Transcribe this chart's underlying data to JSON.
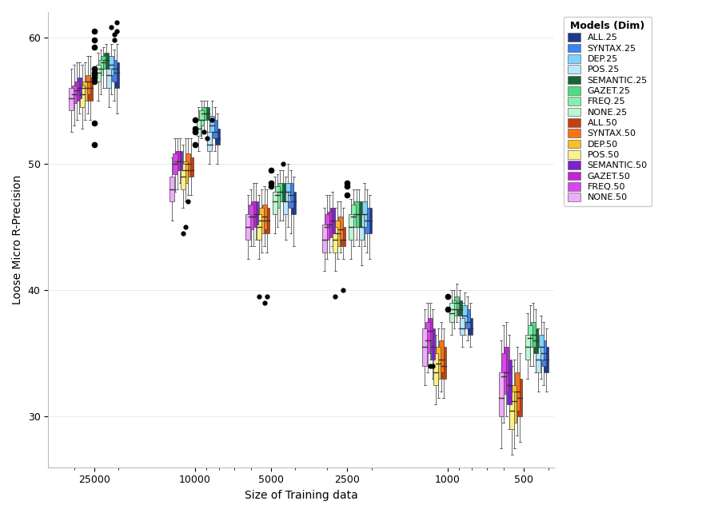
{
  "xlabel": "Size of Training data",
  "ylabel": "Loose Micro R-Precision",
  "background_color": "#ffffff",
  "plot_bg_color": "#ffffff",
  "grid_color": "#e8e8e8",
  "x_positions": [
    25000,
    10000,
    5000,
    2500,
    1000,
    500
  ],
  "x_tick_labels": [
    "25000",
    "10000",
    "5000",
    "2500",
    "1000",
    "500"
  ],
  "ylim": [
    26,
    62
  ],
  "yticks": [
    30,
    40,
    50,
    60
  ],
  "models_25": [
    "ALL.25",
    "SYNTAX.25",
    "DEP.25",
    "POS.25",
    "SEMANTIC.25",
    "GAZET.25",
    "FREQ.25",
    "NONE.25"
  ],
  "models_50": [
    "ALL.50",
    "SYNTAX.50",
    "DEP.50",
    "POS.50",
    "SEMANTIC.50",
    "GAZET.50",
    "FREQ.50",
    "NONE.50"
  ],
  "colors_25": [
    "#1e3a8a",
    "#3b82f6",
    "#7dd3fc",
    "#bae6fd",
    "#166534",
    "#4ade80",
    "#86efac",
    "#bbf7d0"
  ],
  "colors_50": [
    "#c2410c",
    "#f97316",
    "#fbbf24",
    "#fef08a",
    "#7e22ce",
    "#c026d3",
    "#d946ef",
    "#f0abfc"
  ],
  "box_data": {
    "ALL.25": {
      "25000": [
        54.0,
        56.0,
        57.2,
        58.0,
        59.5
      ],
      "10000": [
        50.0,
        51.5,
        52.0,
        52.8,
        54.0
      ],
      "5000": [
        43.5,
        46.0,
        47.0,
        47.8,
        49.0
      ],
      "2500": [
        42.5,
        44.5,
        45.5,
        46.5,
        47.5
      ],
      "1000": [
        35.5,
        36.5,
        37.0,
        37.8,
        39.0
      ],
      "500": [
        32.0,
        33.5,
        34.5,
        35.5,
        37.0
      ]
    },
    "SYNTAX.25": {
      "25000": [
        55.0,
        56.5,
        57.5,
        58.2,
        59.0
      ],
      "10000": [
        51.0,
        52.0,
        52.5,
        53.5,
        54.5
      ],
      "5000": [
        44.5,
        46.5,
        47.5,
        48.5,
        49.5
      ],
      "2500": [
        43.0,
        44.5,
        45.5,
        46.5,
        48.0
      ],
      "1000": [
        36.0,
        37.0,
        37.5,
        38.5,
        39.5
      ],
      "500": [
        32.5,
        34.0,
        35.0,
        36.0,
        37.5
      ]
    },
    "DEP.25": {
      "25000": [
        55.5,
        57.0,
        57.8,
        58.5,
        59.5
      ],
      "10000": [
        51.5,
        52.5,
        53.0,
        53.8,
        55.0
      ],
      "5000": [
        45.0,
        47.0,
        47.8,
        48.5,
        50.0
      ],
      "2500": [
        43.5,
        45.0,
        46.0,
        47.0,
        48.5
      ],
      "1000": [
        36.5,
        37.5,
        38.0,
        38.8,
        39.8
      ],
      "500": [
        33.0,
        34.5,
        35.5,
        36.5,
        38.0
      ]
    },
    "POS.25": {
      "25000": [
        54.5,
        56.0,
        57.0,
        57.5,
        58.5
      ],
      "10000": [
        50.0,
        51.0,
        51.5,
        52.5,
        53.5
      ],
      "5000": [
        44.0,
        46.0,
        47.0,
        47.8,
        49.0
      ],
      "2500": [
        42.0,
        44.0,
        45.0,
        46.0,
        47.0
      ],
      "1000": [
        35.5,
        36.5,
        37.0,
        37.8,
        39.0
      ],
      "500": [
        32.0,
        33.5,
        34.5,
        35.5,
        37.0
      ]
    },
    "SEMANTIC.25": {
      "25000": [
        56.0,
        57.5,
        58.2,
        58.8,
        59.5
      ],
      "10000": [
        52.5,
        53.5,
        54.0,
        54.5,
        55.0
      ],
      "5000": [
        45.5,
        47.0,
        47.8,
        48.5,
        49.5
      ],
      "2500": [
        43.5,
        45.0,
        46.0,
        47.0,
        48.0
      ],
      "1000": [
        37.0,
        38.0,
        38.5,
        39.2,
        40.0
      ],
      "500": [
        33.5,
        35.0,
        36.0,
        37.0,
        38.5
      ]
    },
    "GAZET.25": {
      "25000": [
        56.0,
        57.5,
        58.0,
        58.5,
        59.2
      ],
      "10000": [
        52.5,
        53.5,
        54.0,
        54.5,
        55.0
      ],
      "5000": [
        45.5,
        47.0,
        47.8,
        48.5,
        49.5
      ],
      "2500": [
        44.0,
        45.0,
        46.0,
        47.0,
        48.0
      ],
      "1000": [
        37.5,
        38.5,
        39.0,
        39.5,
        40.5
      ],
      "500": [
        34.0,
        35.5,
        36.5,
        37.5,
        39.0
      ]
    },
    "FREQ.25": {
      "25000": [
        55.5,
        57.0,
        57.5,
        58.2,
        59.0
      ],
      "10000": [
        52.0,
        53.0,
        53.5,
        54.2,
        55.0
      ],
      "5000": [
        45.0,
        46.5,
        47.5,
        48.2,
        49.2
      ],
      "2500": [
        43.5,
        45.0,
        45.8,
        46.8,
        48.0
      ],
      "1000": [
        37.0,
        38.0,
        38.5,
        39.2,
        40.0
      ],
      "500": [
        34.0,
        35.5,
        36.2,
        37.2,
        38.8
      ]
    },
    "NONE.25": {
      "25000": [
        55.0,
        56.5,
        57.2,
        57.8,
        58.8
      ],
      "10000": [
        51.0,
        52.2,
        52.8,
        53.5,
        54.5
      ],
      "5000": [
        44.5,
        46.0,
        47.0,
        47.8,
        49.0
      ],
      "2500": [
        42.5,
        44.0,
        45.0,
        46.0,
        47.2
      ],
      "1000": [
        36.5,
        37.5,
        38.2,
        39.0,
        40.0
      ],
      "500": [
        33.0,
        34.5,
        35.5,
        36.5,
        38.2
      ]
    },
    "ALL.50": {
      "25000": [
        53.5,
        55.0,
        56.0,
        56.8,
        58.5
      ],
      "10000": [
        47.5,
        49.0,
        49.5,
        50.5,
        52.0
      ],
      "5000": [
        43.0,
        44.5,
        45.5,
        46.5,
        48.0
      ],
      "2500": [
        42.5,
        43.5,
        44.0,
        45.0,
        46.5
      ],
      "1000": [
        31.5,
        33.0,
        34.0,
        35.5,
        37.0
      ],
      "500": [
        28.0,
        30.0,
        31.5,
        33.0,
        35.0
      ]
    },
    "SYNTAX.50": {
      "25000": [
        54.0,
        55.5,
        56.5,
        57.0,
        58.5
      ],
      "10000": [
        47.5,
        49.0,
        50.0,
        50.8,
        52.0
      ],
      "5000": [
        43.5,
        44.8,
        45.8,
        46.8,
        48.2
      ],
      "2500": [
        43.0,
        44.0,
        44.8,
        45.8,
        47.0
      ],
      "1000": [
        32.0,
        33.5,
        34.5,
        36.0,
        37.5
      ],
      "500": [
        28.5,
        30.5,
        32.0,
        33.5,
        35.5
      ]
    },
    "DEP.50": {
      "25000": [
        53.5,
        55.0,
        56.0,
        56.5,
        58.0
      ],
      "10000": [
        47.0,
        48.5,
        49.5,
        50.2,
        52.0
      ],
      "5000": [
        43.0,
        44.5,
        45.5,
        46.5,
        48.0
      ],
      "2500": [
        42.5,
        43.5,
        44.5,
        45.5,
        47.0
      ],
      "1000": [
        31.5,
        33.0,
        34.2,
        35.5,
        37.0
      ],
      "500": [
        27.5,
        29.5,
        31.2,
        32.5,
        34.5
      ]
    },
    "POS.50": {
      "25000": [
        52.8,
        54.5,
        55.5,
        56.2,
        57.8
      ],
      "10000": [
        46.5,
        48.0,
        49.0,
        50.0,
        51.5
      ],
      "5000": [
        42.5,
        44.0,
        45.0,
        46.0,
        47.5
      ],
      "2500": [
        41.5,
        43.0,
        44.0,
        45.0,
        46.5
      ],
      "1000": [
        31.0,
        32.5,
        33.5,
        35.0,
        36.5
      ],
      "500": [
        27.0,
        29.0,
        30.5,
        32.0,
        34.0
      ]
    },
    "SEMANTIC.50": {
      "25000": [
        54.0,
        55.2,
        56.0,
        56.8,
        58.0
      ],
      "10000": [
        48.5,
        49.5,
        50.2,
        51.0,
        52.0
      ],
      "5000": [
        44.0,
        45.2,
        46.0,
        47.0,
        48.5
      ],
      "2500": [
        43.5,
        44.5,
        45.5,
        46.5,
        47.8
      ],
      "1000": [
        33.0,
        34.5,
        35.5,
        37.0,
        38.5
      ],
      "500": [
        29.0,
        31.0,
        32.5,
        34.5,
        36.5
      ]
    },
    "GAZET.50": {
      "25000": [
        53.5,
        55.0,
        55.8,
        56.5,
        58.0
      ],
      "10000": [
        48.0,
        49.5,
        50.2,
        51.0,
        52.0
      ],
      "5000": [
        43.5,
        45.0,
        45.8,
        47.0,
        48.5
      ],
      "2500": [
        43.0,
        44.2,
        45.2,
        46.2,
        47.5
      ],
      "1000": [
        34.5,
        36.0,
        36.8,
        37.8,
        39.0
      ],
      "500": [
        30.0,
        32.0,
        33.5,
        35.5,
        37.5
      ]
    },
    "FREQ.50": {
      "25000": [
        53.0,
        54.8,
        55.5,
        56.2,
        57.8
      ],
      "10000": [
        47.8,
        49.2,
        50.0,
        50.8,
        52.0
      ],
      "5000": [
        43.5,
        44.8,
        45.8,
        46.8,
        48.0
      ],
      "2500": [
        42.5,
        44.0,
        45.0,
        46.0,
        47.5
      ],
      "1000": [
        33.5,
        35.0,
        36.0,
        37.5,
        39.0
      ],
      "500": [
        29.5,
        31.8,
        33.2,
        35.0,
        37.2
      ]
    },
    "NONE.50": {
      "25000": [
        52.5,
        54.2,
        55.2,
        56.0,
        57.5
      ],
      "10000": [
        45.5,
        47.0,
        48.0,
        49.0,
        50.5
      ],
      "5000": [
        42.5,
        44.0,
        45.0,
        46.0,
        47.5
      ],
      "2500": [
        41.5,
        43.0,
        44.0,
        45.2,
        46.5
      ],
      "1000": [
        32.5,
        34.0,
        35.5,
        37.0,
        38.5
      ],
      "500": [
        27.5,
        30.0,
        31.5,
        33.5,
        36.0
      ]
    }
  },
  "outliers": {
    "ALL.25": {
      "25000": [
        60.5,
        61.2
      ],
      "10000": [],
      "5000": [],
      "2500": [],
      "1000": [],
      "500": []
    },
    "SYNTAX.25": {
      "25000": [
        59.8,
        60.2
      ],
      "10000": [],
      "5000": [],
      "2500": [],
      "1000": [],
      "500": []
    },
    "DEP.25": {
      "25000": [
        60.8
      ],
      "10000": [
        53.5
      ],
      "5000": [],
      "2500": [],
      "1000": [],
      "500": []
    },
    "POS.25": {
      "25000": [],
      "10000": [],
      "5000": [],
      "2500": [],
      "1000": [],
      "500": []
    },
    "SEMANTIC.25": {
      "25000": [],
      "10000": [
        52.0
      ],
      "5000": [
        50.0
      ],
      "2500": [],
      "1000": [],
      "500": []
    },
    "GAZET.25": {
      "25000": [],
      "10000": [
        52.5
      ],
      "5000": [],
      "2500": [],
      "1000": [],
      "500": []
    },
    "FREQ.25": {
      "25000": [],
      "10000": [],
      "5000": [],
      "2500": [],
      "1000": [],
      "500": []
    },
    "NONE.25": {
      "25000": [],
      "10000": [],
      "5000": [],
      "2500": [],
      "1000": [],
      "500": []
    },
    "ALL.50": {
      "25000": [],
      "10000": [],
      "5000": [
        39.5
      ],
      "2500": [
        40.0
      ],
      "1000": [],
      "500": []
    },
    "SYNTAX.50": {
      "25000": [],
      "10000": [
        47.0
      ],
      "5000": [
        39.0
      ],
      "2500": [],
      "1000": [],
      "500": []
    },
    "DEP.50": {
      "25000": [],
      "10000": [
        45.0
      ],
      "5000": [],
      "2500": [],
      "1000": [],
      "500": []
    },
    "POS.50": {
      "25000": [],
      "10000": [
        44.5
      ],
      "5000": [
        39.5
      ],
      "2500": [
        39.5
      ],
      "1000": [],
      "500": []
    },
    "SEMANTIC.50": {
      "25000": [],
      "10000": [],
      "5000": [],
      "2500": [],
      "1000": [
        34.0
      ],
      "500": []
    },
    "GAZET.50": {
      "25000": [],
      "10000": [],
      "5000": [],
      "2500": [],
      "1000": [
        34.0
      ],
      "500": []
    },
    "FREQ.50": {
      "25000": [],
      "10000": [],
      "5000": [],
      "2500": [],
      "1000": [],
      "500": []
    },
    "NONE.50": {
      "25000": [],
      "10000": [],
      "5000": [],
      "2500": [],
      "1000": [],
      "500": []
    }
  },
  "dong_points": {
    "25000": [
      59.2,
      59.8,
      60.5,
      57.5,
      56.8,
      57.2,
      56.5,
      57.0,
      53.2,
      51.5
    ],
    "10000": [
      53.5,
      52.8,
      52.5,
      51.5
    ],
    "5000": [
      49.5,
      48.5,
      48.2
    ],
    "2500": [
      48.5,
      48.2,
      47.5
    ],
    "1000": [
      39.5,
      38.5
    ],
    "500": []
  },
  "legend_title": "Models (Dim)"
}
